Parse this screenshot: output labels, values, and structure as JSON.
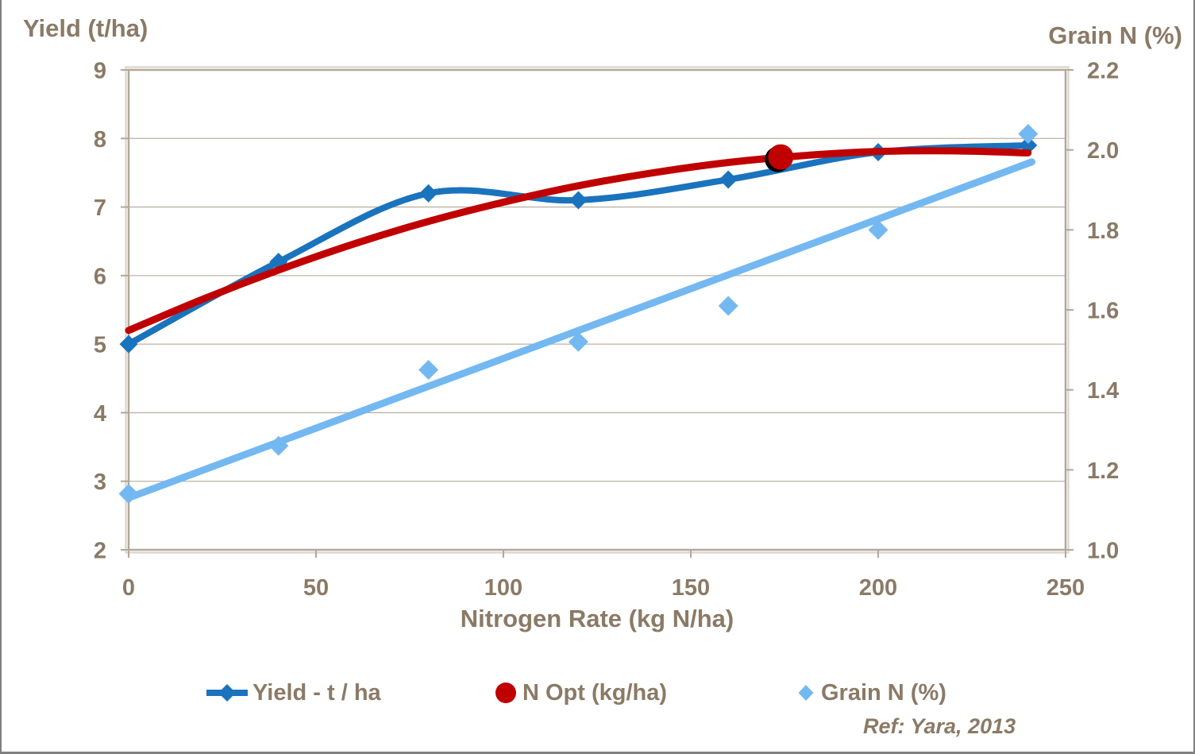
{
  "colors": {
    "text": "#8a7a66",
    "grid": "#bcb2a5",
    "frame": "#b2a79a",
    "frame_highlight": "#ddd8cf",
    "outer_border": "#808080",
    "background": "#ffffff",
    "yield_blue": "#1a73bd",
    "nopt_red": "#c00000",
    "grain_lightblue": "#74b8f2"
  },
  "chart_data": {
    "type": "line",
    "grid": "horizontal",
    "legend_position": "bottom",
    "left_axis": {
      "title": "Yield (t/ha)",
      "ticks": [
        9,
        8,
        7,
        6,
        5,
        4,
        3,
        2
      ],
      "lim": [
        2,
        9
      ]
    },
    "right_axis": {
      "title": "Grain N (%)",
      "ticks": [
        "2.2",
        "2.0",
        "1.8",
        "1.6",
        "1.4",
        "1.2",
        "1.0"
      ],
      "lim": [
        1.0,
        2.2
      ]
    },
    "x_axis": {
      "title": "Nitrogen Rate (kg N/ha)",
      "ticks": [
        0,
        50,
        100,
        150,
        200,
        250
      ],
      "lim": [
        0,
        250
      ]
    },
    "series": [
      {
        "name": "Yield - t / ha",
        "axis": "left",
        "style": "smooth-line-with-diamond-markers",
        "color": "#1a73bd",
        "x": [
          0,
          40,
          80,
          120,
          160,
          200,
          240
        ],
        "y": [
          5.0,
          6.2,
          7.2,
          7.1,
          7.4,
          7.8,
          7.9
        ]
      },
      {
        "name": "N Opt (kg/ha)",
        "axis": "left",
        "style": "smooth-curve-with-single-dot-marker",
        "color": "#c00000",
        "x": [
          0,
          20,
          40,
          60,
          80,
          100,
          120,
          140,
          160,
          180,
          200,
          220,
          240
        ],
        "y": [
          5.2,
          5.66,
          6.08,
          6.46,
          6.79,
          7.07,
          7.31,
          7.5,
          7.65,
          7.75,
          7.81,
          7.82,
          7.79
        ],
        "marker": {
          "x": 174,
          "y": 7.73
        }
      },
      {
        "name": "Grain N (%)",
        "axis": "right",
        "style": "scatter-diamond-with-linear-trendline",
        "color": "#74b8f2",
        "x": [
          0,
          40,
          80,
          120,
          160,
          200,
          240
        ],
        "y": [
          1.14,
          1.26,
          1.45,
          1.52,
          1.61,
          1.8,
          2.04
        ],
        "trendline": {
          "x": [
            0,
            241
          ],
          "y": [
            1.13,
            1.97
          ]
        }
      }
    ],
    "annotation": "Ref: Yara, 2013"
  }
}
